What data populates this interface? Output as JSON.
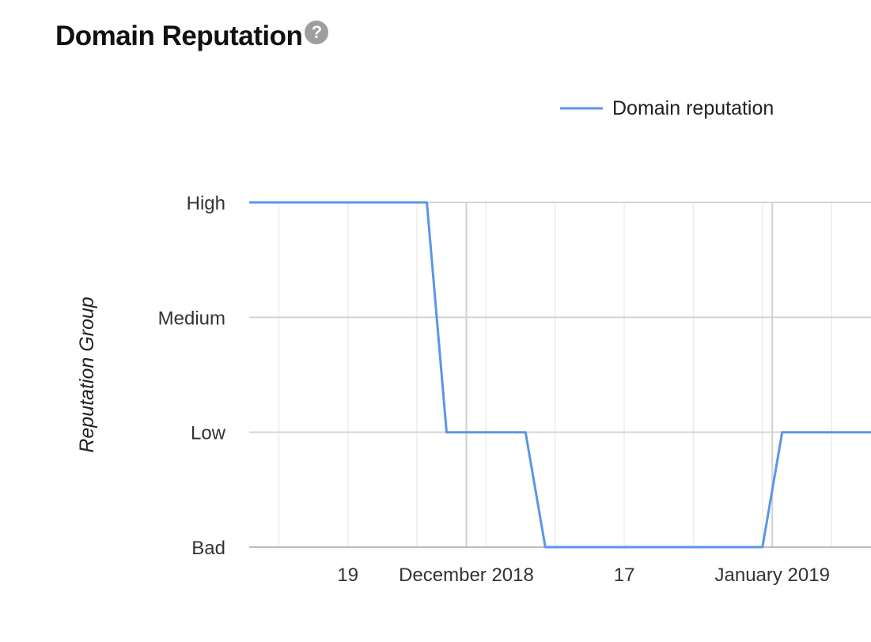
{
  "header": {
    "title": "Domain Reputation",
    "help_icon": "question-mark-icon",
    "help_glyph": "?"
  },
  "chart_data": {
    "type": "line",
    "title": "Domain Reputation",
    "ylabel": "Reputation Group",
    "xlabel": "",
    "y_categories": [
      "Bad",
      "Low",
      "Medium",
      "High"
    ],
    "x_tick_labels": [
      "19",
      "December 2018",
      "17",
      "January 2019"
    ],
    "x_ticks": [
      "2018-11-19",
      "2018-12-01",
      "2018-12-17",
      "2019-01-01"
    ],
    "xlim": [
      "2018-11-09",
      "2019-01-11"
    ],
    "series": [
      {
        "name": "Domain reputation",
        "color": "#5b95e8",
        "points": [
          {
            "x": "2018-11-09",
            "y": "High"
          },
          {
            "x": "2018-11-27",
            "y": "High"
          },
          {
            "x": "2018-11-29",
            "y": "Low"
          },
          {
            "x": "2018-12-07",
            "y": "Low"
          },
          {
            "x": "2018-12-09",
            "y": "Bad"
          },
          {
            "x": "2018-12-31",
            "y": "Bad"
          },
          {
            "x": "2019-01-02",
            "y": "Low"
          },
          {
            "x": "2019-01-11",
            "y": "Low"
          }
        ]
      }
    ],
    "legend": "top-right",
    "grid": true
  }
}
